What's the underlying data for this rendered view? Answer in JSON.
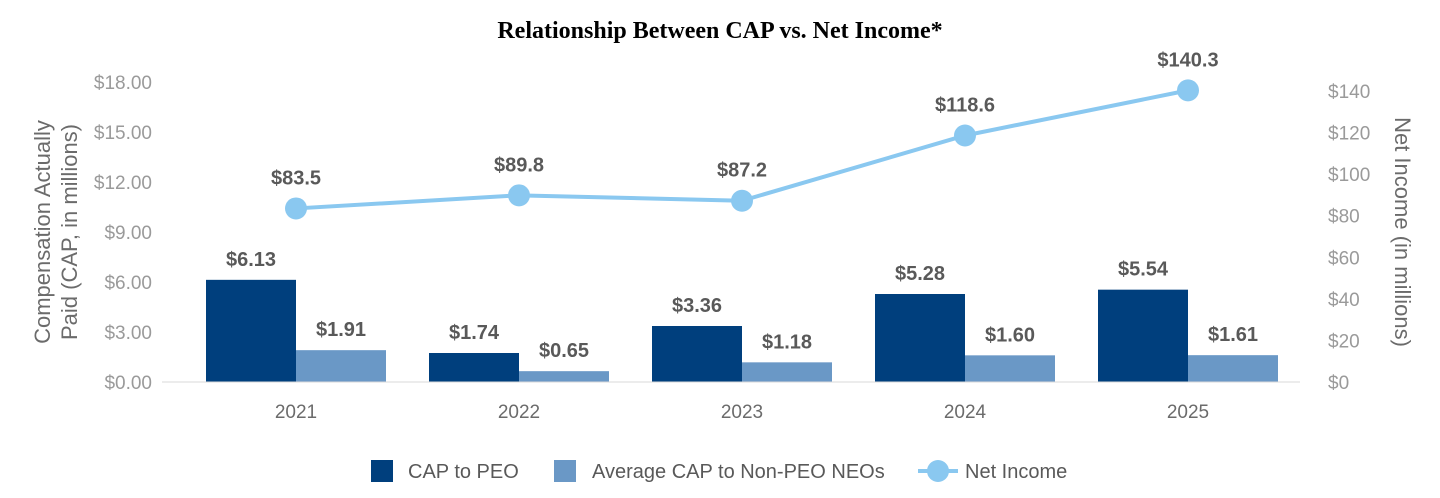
{
  "chart_data": {
    "type": "bar+line",
    "title": "Relationship Between CAP vs. Net Income*",
    "categories": [
      "2021",
      "2022",
      "2023",
      "2024",
      "2025"
    ],
    "series": [
      {
        "name": "CAP to PEO",
        "type": "bar",
        "axis": "left",
        "color": "#003f7d",
        "values": [
          6.13,
          1.74,
          3.36,
          5.28,
          5.54
        ],
        "labels": [
          "$6.13",
          "$1.74",
          "$3.36",
          "$5.28",
          "$5.54"
        ]
      },
      {
        "name": "Average CAP to Non-PEO NEOs",
        "type": "bar",
        "axis": "left",
        "color": "#6a98c6",
        "values": [
          1.91,
          0.65,
          1.18,
          1.6,
          1.61
        ],
        "labels": [
          "$1.91",
          "$0.65",
          "$1.18",
          "$1.60",
          "$1.61"
        ]
      },
      {
        "name": "Net Income",
        "type": "line",
        "axis": "right",
        "color": "#8ac8f0",
        "values": [
          83.5,
          89.8,
          87.2,
          118.6,
          140.3
        ],
        "labels": [
          "$83.5",
          "$89.8",
          "$87.2",
          "$118.6",
          "$140.3"
        ]
      }
    ],
    "y_left": {
      "label_line1": "Compensation Actually",
      "label_line2": "Paid (CAP, in millions)",
      "range": [
        0,
        18
      ],
      "ticks": [
        0,
        3,
        6,
        9,
        12,
        15,
        18
      ],
      "tick_labels": [
        "$0.00",
        "$3.00",
        "$6.00",
        "$9.00",
        "$12.00",
        "$15.00",
        "$18.00"
      ]
    },
    "y_right": {
      "label": "Net Income (in millions)",
      "range": [
        0,
        140
      ],
      "ticks": [
        0,
        20,
        40,
        60,
        80,
        100,
        120,
        140
      ],
      "tick_labels": [
        "$0",
        "$20",
        "$40",
        "$60",
        "$80",
        "$100",
        "$120",
        "$140"
      ]
    },
    "grid": false,
    "legend_position": "bottom-center"
  }
}
